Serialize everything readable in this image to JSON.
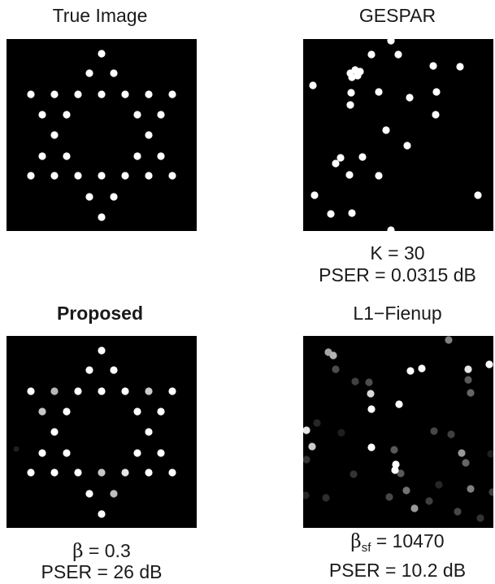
{
  "panels": {
    "true_image": {
      "title": "True Image"
    },
    "gespar": {
      "title": "GESPAR",
      "k_label": "K = 30",
      "pser_label": "PSER = 0.0315 dB"
    },
    "proposed": {
      "title": "Proposed",
      "beta_symbol": "β",
      "beta_value": " = 0.3",
      "pser_label": "PSER = 26 dB"
    },
    "l1_fienup": {
      "title": "L1−Fienup",
      "beta_symbol": "β",
      "beta_subscript": "sf",
      "beta_value": " = 10470",
      "pser_label": "PSER = 10.2 dB"
    }
  },
  "colors": {
    "panel_background": "#000000",
    "dot_bright": "#ffffff"
  }
}
